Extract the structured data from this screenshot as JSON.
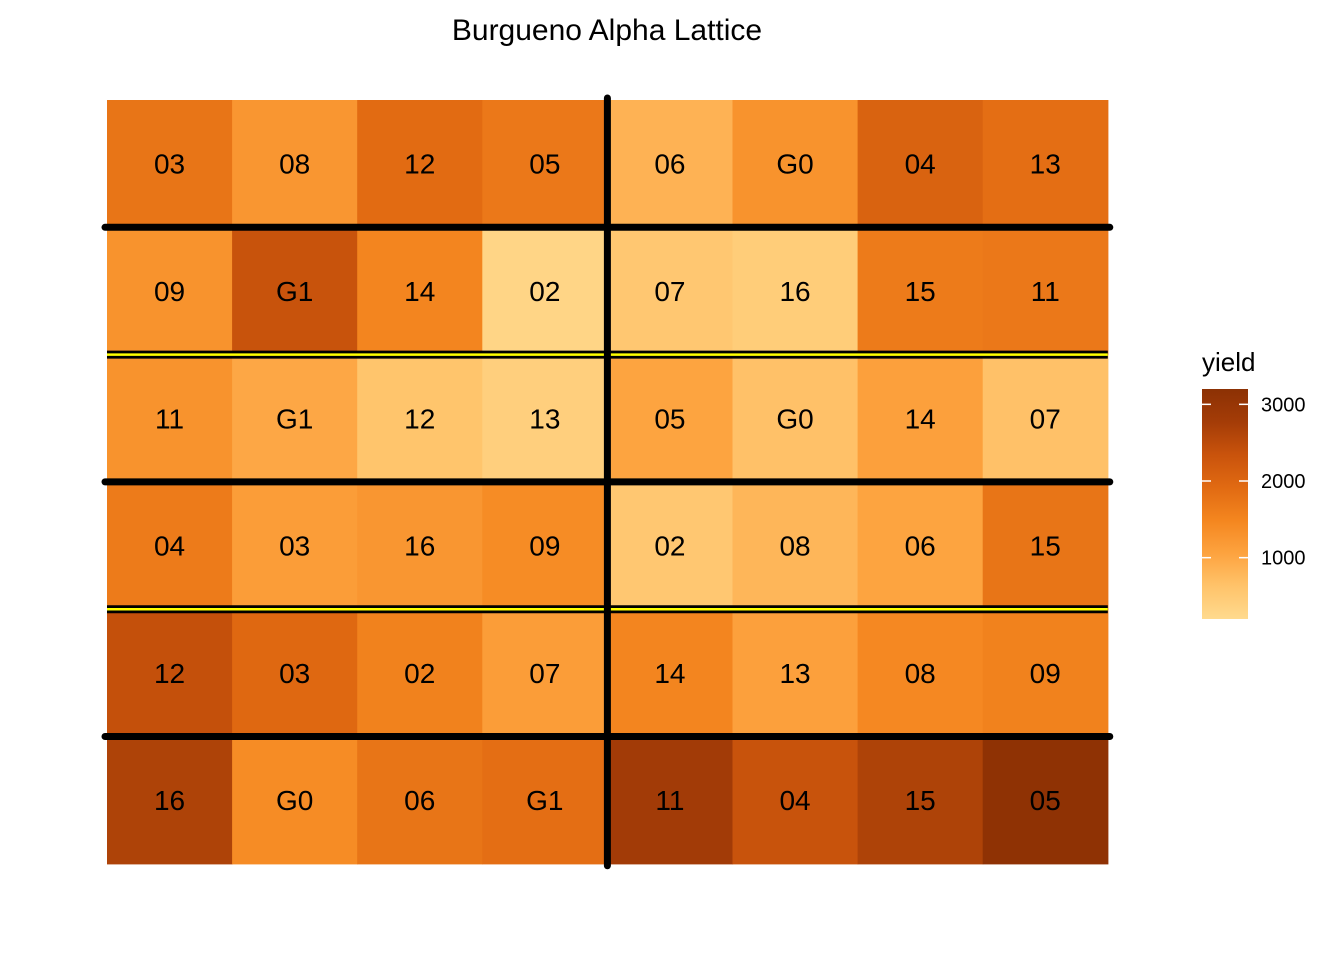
{
  "chart_data": {
    "type": "heatmap",
    "title": "Burgueno Alpha Lattice",
    "xlabel": "",
    "ylabel": "",
    "rows": 6,
    "cols": 8,
    "cells": [
      {
        "row": 1,
        "col": 1,
        "gen": "03",
        "yield": 1750
      },
      {
        "row": 1,
        "col": 2,
        "gen": "08",
        "yield": 1250
      },
      {
        "row": 1,
        "col": 3,
        "gen": "12",
        "yield": 1900
      },
      {
        "row": 1,
        "col": 4,
        "gen": "05",
        "yield": 1700
      },
      {
        "row": 1,
        "col": 5,
        "gen": "06",
        "yield": 850
      },
      {
        "row": 1,
        "col": 6,
        "gen": "G0",
        "yield": 1300
      },
      {
        "row": 1,
        "col": 7,
        "gen": "04",
        "yield": 2050
      },
      {
        "row": 1,
        "col": 8,
        "gen": "13",
        "yield": 1850
      },
      {
        "row": 2,
        "col": 1,
        "gen": "09",
        "yield": 1300
      },
      {
        "row": 2,
        "col": 2,
        "gen": "G1",
        "yield": 2350
      },
      {
        "row": 2,
        "col": 3,
        "gen": "14",
        "yield": 1500
      },
      {
        "row": 2,
        "col": 4,
        "gen": "02",
        "yield": 300
      },
      {
        "row": 2,
        "col": 5,
        "gen": "07",
        "yield": 550
      },
      {
        "row": 2,
        "col": 6,
        "gen": "16",
        "yield": 450
      },
      {
        "row": 2,
        "col": 7,
        "gen": "15",
        "yield": 1650
      },
      {
        "row": 2,
        "col": 8,
        "gen": "11",
        "yield": 1700
      },
      {
        "row": 3,
        "col": 1,
        "gen": "11",
        "yield": 1300
      },
      {
        "row": 3,
        "col": 2,
        "gen": "G1",
        "yield": 1000
      },
      {
        "row": 3,
        "col": 3,
        "gen": "12",
        "yield": 600
      },
      {
        "row": 3,
        "col": 4,
        "gen": "13",
        "yield": 400
      },
      {
        "row": 3,
        "col": 5,
        "gen": "05",
        "yield": 1050
      },
      {
        "row": 3,
        "col": 6,
        "gen": "G0",
        "yield": 650
      },
      {
        "row": 3,
        "col": 7,
        "gen": "14",
        "yield": 1100
      },
      {
        "row": 3,
        "col": 8,
        "gen": "07",
        "yield": 650
      },
      {
        "row": 4,
        "col": 1,
        "gen": "04",
        "yield": 1650
      },
      {
        "row": 4,
        "col": 2,
        "gen": "03",
        "yield": 1150
      },
      {
        "row": 4,
        "col": 3,
        "gen": "16",
        "yield": 1250
      },
      {
        "row": 4,
        "col": 4,
        "gen": "09",
        "yield": 1400
      },
      {
        "row": 4,
        "col": 5,
        "gen": "02",
        "yield": 550
      },
      {
        "row": 4,
        "col": 6,
        "gen": "08",
        "yield": 800
      },
      {
        "row": 4,
        "col": 7,
        "gen": "06",
        "yield": 1050
      },
      {
        "row": 4,
        "col": 8,
        "gen": "15",
        "yield": 1750
      },
      {
        "row": 5,
        "col": 1,
        "gen": "12",
        "yield": 2400
      },
      {
        "row": 5,
        "col": 2,
        "gen": "03",
        "yield": 1950
      },
      {
        "row": 5,
        "col": 3,
        "gen": "02",
        "yield": 1550
      },
      {
        "row": 5,
        "col": 4,
        "gen": "07",
        "yield": 1150
      },
      {
        "row": 5,
        "col": 5,
        "gen": "14",
        "yield": 1500
      },
      {
        "row": 5,
        "col": 6,
        "gen": "13",
        "yield": 1100
      },
      {
        "row": 5,
        "col": 7,
        "gen": "08",
        "yield": 1450
      },
      {
        "row": 5,
        "col": 8,
        "gen": "09",
        "yield": 1550
      },
      {
        "row": 6,
        "col": 1,
        "gen": "16",
        "yield": 2650
      },
      {
        "row": 6,
        "col": 2,
        "gen": "G0",
        "yield": 1400
      },
      {
        "row": 6,
        "col": 3,
        "gen": "06",
        "yield": 1750
      },
      {
        "row": 6,
        "col": 4,
        "gen": "G1",
        "yield": 1850
      },
      {
        "row": 6,
        "col": 5,
        "gen": "11",
        "yield": 2800
      },
      {
        "row": 6,
        "col": 6,
        "gen": "04",
        "yield": 2350
      },
      {
        "row": 6,
        "col": 7,
        "gen": "15",
        "yield": 2650
      },
      {
        "row": 6,
        "col": 8,
        "gen": "05",
        "yield": 3150
      }
    ],
    "rep_boundaries": {
      "vertical_after_col": [
        4
      ],
      "horizontal_after_row": [
        1,
        3,
        5
      ]
    },
    "block_boundaries": {
      "horizontal_after_row": [
        2,
        4
      ]
    },
    "legend": {
      "title": "yield",
      "placement": "right",
      "min": 200,
      "max": 3200,
      "ticks": [
        1000,
        2000,
        3000
      ],
      "tick_labels": [
        "1000",
        "2000",
        "3000"
      ]
    },
    "colors": {
      "scale": [
        "#FFDA8E",
        "#FFC36A",
        "#FDA33F",
        "#F4861F",
        "#E16A12",
        "#C9530C",
        "#A43C07",
        "#8C3104"
      ],
      "rep_line": "#000000",
      "block_line_outer": "#000000",
      "block_line_inner": "#FFFF00"
    }
  }
}
